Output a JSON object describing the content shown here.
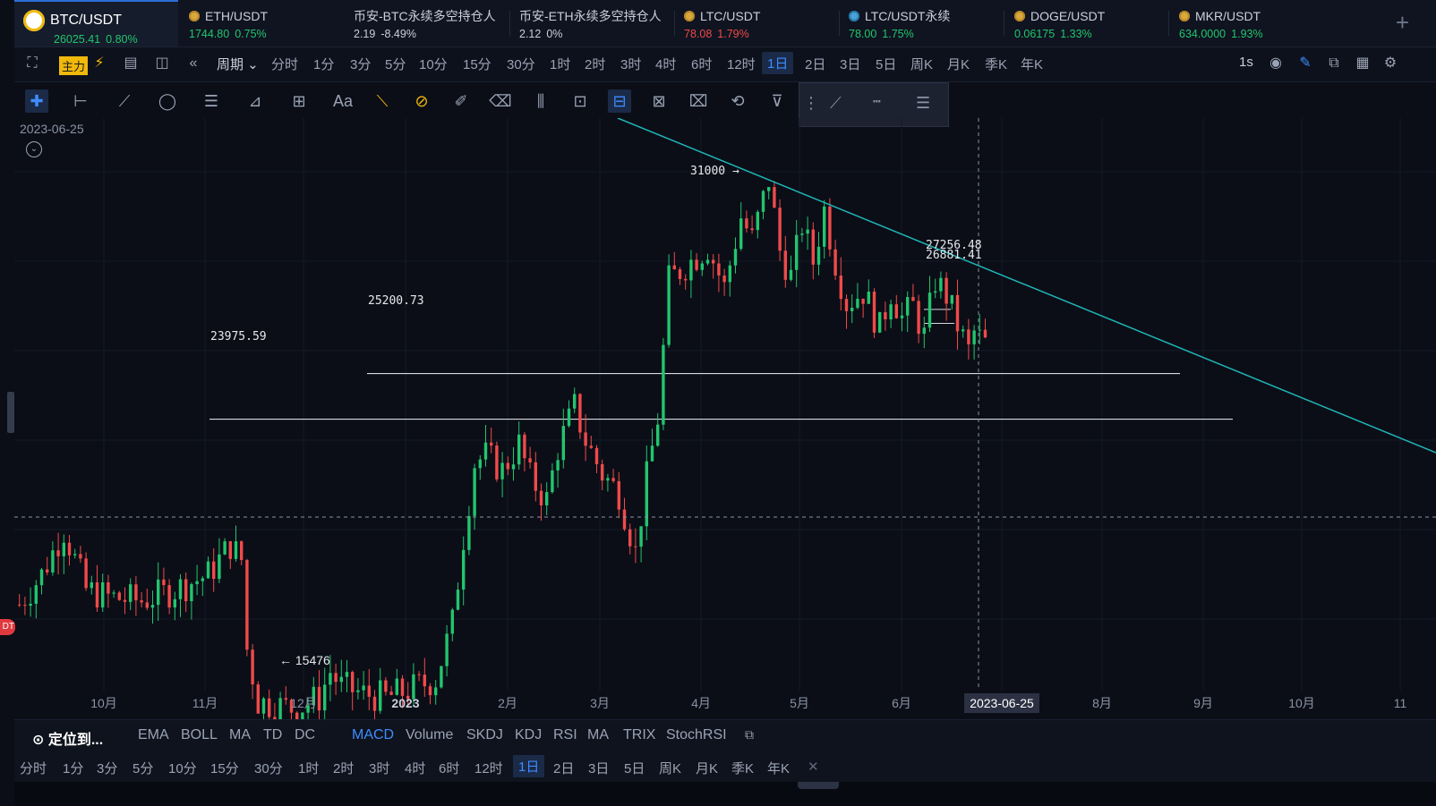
{
  "tabs": [
    {
      "name": "BTC/USDT",
      "price": "26025.41",
      "change": "0.80%",
      "dir": "up",
      "active": true,
      "icon": "binance-coin-icon"
    },
    {
      "name": "ETH/USDT",
      "price": "1744.80",
      "change": "0.75%",
      "dir": "up",
      "icon": "coin-icon"
    },
    {
      "name": "币安-BTC永续多空持仓人",
      "price": "2.19",
      "change": "-8.49%",
      "dir": "down"
    },
    {
      "name": "币安-ETH永续多空持仓人",
      "price": "2.12",
      "change": "0%",
      "dir": "flat"
    },
    {
      "name": "LTC/USDT",
      "price": "78.08",
      "change": "1.79%",
      "dir": "down",
      "icon": "coin-icon"
    },
    {
      "name": "LTC/USDT永续",
      "price": "78.00",
      "change": "1.75%",
      "dir": "up",
      "icon": "ltc-icon"
    },
    {
      "name": "DOGE/USDT",
      "price": "0.06175",
      "change": "1.33%",
      "dir": "up",
      "icon": "coin-icon"
    },
    {
      "name": "MKR/USDT",
      "price": "634.0000",
      "change": "1.93%",
      "dir": "up",
      "icon": "coin-icon"
    }
  ],
  "toolbar": {
    "main_label": "主力",
    "period_label": "周期",
    "intervals": [
      "分时",
      "1分",
      "3分",
      "5分",
      "10分",
      "15分",
      "30分",
      "1时",
      "2时",
      "3时",
      "4时",
      "6时",
      "12时",
      "1日",
      "2日",
      "3日",
      "5日",
      "周K",
      "月K",
      "季K",
      "年K"
    ],
    "selected_interval": "1日",
    "refresh_label": "1s"
  },
  "chart_data": {
    "type": "candlestick",
    "symbol": "BTC/USDT",
    "crosshair_date": "2023-06-25",
    "corner_date": "2023-06-25",
    "x_ticks": [
      "10月",
      "11月",
      "12月",
      "2023",
      "2月",
      "3月",
      "4月",
      "5月",
      "6月",
      "2023-06-25",
      "8月",
      "9月",
      "10月",
      "11"
    ],
    "annotations": {
      "high": "31000",
      "low": "15476",
      "level_1": "25200.73",
      "level_2": "23975.59",
      "level_3": "27256.48",
      "level_4": "26881.41"
    },
    "price_path": [
      [
        0,
        19000
      ],
      [
        4,
        19800
      ],
      [
        8,
        21000
      ],
      [
        12,
        19400
      ],
      [
        16,
        19200
      ],
      [
        22,
        19100
      ],
      [
        28,
        19400
      ],
      [
        34,
        19800
      ],
      [
        38,
        20600
      ],
      [
        40,
        20200
      ],
      [
        41,
        17800
      ],
      [
        43,
        16400
      ],
      [
        46,
        16300
      ],
      [
        50,
        16200
      ],
      [
        54,
        16500
      ],
      [
        56,
        17200
      ],
      [
        58,
        16800
      ],
      [
        62,
        16600
      ],
      [
        66,
        16500
      ],
      [
        70,
        16700
      ],
      [
        75,
        17000
      ],
      [
        78,
        18500
      ],
      [
        80,
        20800
      ],
      [
        82,
        22800
      ],
      [
        84,
        23000
      ],
      [
        87,
        22600
      ],
      [
        90,
        23300
      ],
      [
        92,
        22400
      ],
      [
        95,
        21800
      ],
      [
        97,
        23200
      ],
      [
        100,
        24300
      ],
      [
        102,
        23400
      ],
      [
        105,
        22500
      ],
      [
        108,
        22000
      ],
      [
        111,
        20400
      ],
      [
        113,
        22400
      ],
      [
        115,
        24000
      ],
      [
        117,
        27700
      ],
      [
        120,
        28100
      ],
      [
        124,
        28600
      ],
      [
        127,
        27500
      ],
      [
        130,
        29400
      ],
      [
        132,
        28800
      ],
      [
        135,
        30400
      ],
      [
        137,
        28500
      ],
      [
        139,
        27800
      ],
      [
        141,
        29200
      ],
      [
        143,
        28200
      ],
      [
        145,
        29600
      ],
      [
        147,
        28200
      ],
      [
        149,
        27100
      ],
      [
        152,
        27400
      ],
      [
        155,
        26400
      ],
      [
        157,
        27400
      ],
      [
        159,
        26700
      ],
      [
        161,
        27000
      ],
      [
        163,
        26200
      ],
      [
        165,
        27700
      ],
      [
        167,
        27300
      ],
      [
        169,
        26500
      ],
      [
        171,
        25800
      ],
      [
        172,
        26300
      ],
      [
        174,
        26000
      ]
    ]
  },
  "indicators": {
    "locate_label": "定位到...",
    "main": [
      "EMA",
      "BOLL",
      "MA",
      "TD",
      "DC"
    ],
    "sub": [
      "MACD",
      "Volume",
      "SKDJ",
      "KDJ",
      "RSI",
      "MA",
      "TRIX",
      "StochRSI"
    ],
    "selected": "MACD"
  },
  "bottom_intervals": [
    "分时",
    "1分",
    "3分",
    "5分",
    "10分",
    "15分",
    "30分",
    "1时",
    "2时",
    "3时",
    "4时",
    "6时",
    "12时",
    "1日",
    "2日",
    "3日",
    "5日",
    "周K",
    "月K",
    "季K",
    "年K"
  ],
  "bottom_selected": "1日",
  "side_badge": "DT",
  "colors": {
    "up": "#22c56e",
    "down": "#f04a4a",
    "accent": "#3f8cff",
    "trend": "#1fb5b5",
    "bg": "#0b0e17"
  }
}
